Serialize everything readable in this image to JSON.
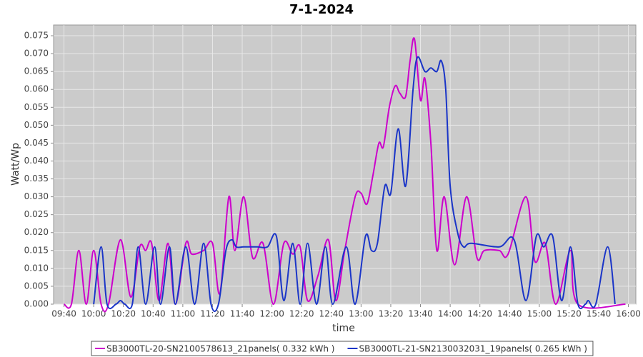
{
  "chart_data": {
    "type": "line",
    "title": "7-1-2024",
    "x_label": "time",
    "y_label": "Watt/Wp",
    "xlim": [
      573,
      965
    ],
    "ylim": [
      0,
      0.078
    ],
    "grid": true,
    "legend_position": "bottom",
    "xticks": [
      {
        "value": 580,
        "label": "09:40"
      },
      {
        "value": 600,
        "label": "10:00"
      },
      {
        "value": 620,
        "label": "10:20"
      },
      {
        "value": 640,
        "label": "10:40"
      },
      {
        "value": 660,
        "label": "11:00"
      },
      {
        "value": 680,
        "label": "11:20"
      },
      {
        "value": 700,
        "label": "11:40"
      },
      {
        "value": 720,
        "label": "12:00"
      },
      {
        "value": 740,
        "label": "12:20"
      },
      {
        "value": 760,
        "label": "12:40"
      },
      {
        "value": 780,
        "label": "13:00"
      },
      {
        "value": 800,
        "label": "13:20"
      },
      {
        "value": 820,
        "label": "13:40"
      },
      {
        "value": 840,
        "label": "14:00"
      },
      {
        "value": 860,
        "label": "14:20"
      },
      {
        "value": 880,
        "label": "14:40"
      },
      {
        "value": 900,
        "label": "15:00"
      },
      {
        "value": 920,
        "label": "15:20"
      },
      {
        "value": 940,
        "label": "15:40"
      },
      {
        "value": 960,
        "label": "16:00"
      }
    ],
    "yticks": [
      {
        "value": 0,
        "label": "0.000"
      },
      {
        "value": 0.005,
        "label": "0.005"
      },
      {
        "value": 0.01,
        "label": "0.010"
      },
      {
        "value": 0.015,
        "label": "0.015"
      },
      {
        "value": 0.02,
        "label": "0.020"
      },
      {
        "value": 0.025,
        "label": "0.025"
      },
      {
        "value": 0.03,
        "label": "0.030"
      },
      {
        "value": 0.035,
        "label": "0.035"
      },
      {
        "value": 0.04,
        "label": "0.040"
      },
      {
        "value": 0.045,
        "label": "0.045"
      },
      {
        "value": 0.05,
        "label": "0.050"
      },
      {
        "value": 0.055,
        "label": "0.055"
      },
      {
        "value": 0.06,
        "label": "0.060"
      },
      {
        "value": 0.065,
        "label": "0.065"
      },
      {
        "value": 0.07,
        "label": "0.070"
      },
      {
        "value": 0.075,
        "label": "0.075"
      }
    ],
    "series": [
      {
        "name": "SB3000TL-20-SN2100578613_21panels( 0.332 kWh )",
        "color": "#cc00cc",
        "x": [
          580,
          585,
          590,
          595,
          600,
          605,
          610,
          618,
          625,
          631,
          635,
          639,
          644,
          650,
          655,
          662,
          666,
          674,
          680,
          685,
          691,
          695,
          701,
          707,
          714,
          721,
          728,
          734,
          739,
          744,
          751,
          758,
          763,
          769,
          776,
          780,
          784,
          788,
          792,
          795,
          799,
          803,
          806,
          810,
          813,
          816,
          820,
          823,
          827,
          831,
          836,
          843,
          851,
          858,
          863,
          873,
          879,
          891,
          897,
          904,
          911,
          921,
          926,
          958
        ],
        "values": [
          0,
          0,
          0.015,
          0,
          0.015,
          0,
          0,
          0.018,
          0.002,
          0.016,
          0.015,
          0.017,
          0.001,
          0.017,
          0,
          0.017,
          0.014,
          0.015,
          0.017,
          0.003,
          0.03,
          0.015,
          0.03,
          0.013,
          0.017,
          0,
          0.017,
          0.014,
          0.016,
          0.001,
          0.008,
          0.018,
          0.001,
          0.015,
          0.03,
          0.031,
          0.028,
          0.036,
          0.045,
          0.044,
          0.055,
          0.061,
          0.059,
          0.058,
          0.068,
          0.074,
          0.057,
          0.063,
          0.045,
          0.015,
          0.03,
          0.011,
          0.03,
          0.013,
          0.015,
          0.015,
          0.014,
          0.03,
          0.012,
          0.017,
          0,
          0.015,
          0,
          0
        ]
      },
      {
        "name": "SB3000TL-21-SN2130032031_19panels( 0.265 kWh )",
        "color": "#1a35c8",
        "x": [
          600,
          605,
          609,
          615,
          618,
          621,
          626,
          630,
          635,
          641,
          645,
          651,
          655,
          662,
          668,
          674,
          679,
          684,
          689,
          693,
          696,
          701,
          710,
          717,
          723,
          728,
          734,
          739,
          744,
          750,
          756,
          761,
          770,
          776,
          783,
          787,
          791,
          796,
          800,
          805,
          810,
          815,
          818,
          823,
          827,
          831,
          834,
          837,
          840,
          845,
          849,
          854,
          873,
          883,
          891,
          898,
          903,
          909,
          915,
          921,
          926,
          931,
          933,
          938,
          946,
          951
        ],
        "values": [
          0,
          0.016,
          0,
          0,
          0.001,
          0,
          0,
          0.016,
          0,
          0.016,
          0,
          0.016,
          0,
          0.016,
          0,
          0.017,
          0,
          0,
          0.015,
          0.018,
          0.016,
          0.016,
          0.016,
          0.016,
          0.019,
          0.001,
          0.017,
          0,
          0.017,
          0,
          0.016,
          0,
          0.016,
          0,
          0.019,
          0.015,
          0.017,
          0.033,
          0.031,
          0.049,
          0.033,
          0.06,
          0.069,
          0.065,
          0.066,
          0.065,
          0.068,
          0.06,
          0.033,
          0.02,
          0.016,
          0.017,
          0.016,
          0.018,
          0.001,
          0.019,
          0.016,
          0.019,
          0.001,
          0.016,
          0,
          0,
          0.001,
          0,
          0.016,
          0
        ]
      }
    ]
  }
}
